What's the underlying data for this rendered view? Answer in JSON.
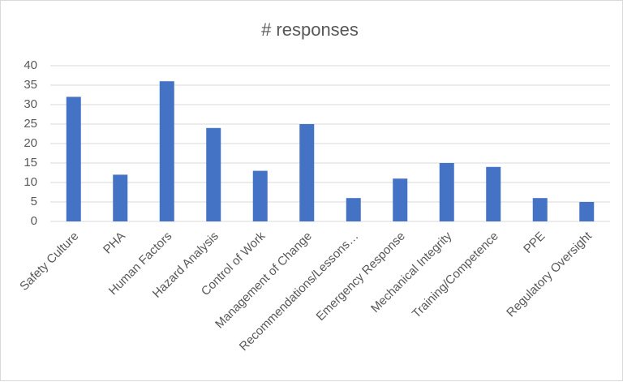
{
  "chart_data": {
    "type": "bar",
    "title": "# responses",
    "categories": [
      "Safety Culture",
      "PHA",
      "Human Factors",
      "Hazard Analysis",
      "Control of Work",
      "Management of Change",
      "Recommendations/Lessons…",
      "Emergency Response",
      "Mechanical Integrity",
      "Training/Competence",
      "PPE",
      "Regulatory Oversight"
    ],
    "values": [
      32,
      12,
      36,
      24,
      13,
      25,
      6,
      11,
      15,
      14,
      6,
      5
    ],
    "color": "#4472c4",
    "ylim": [
      0,
      40
    ],
    "yticks": [
      0,
      5,
      10,
      15,
      20,
      25,
      30,
      35,
      40
    ],
    "grid": true
  }
}
